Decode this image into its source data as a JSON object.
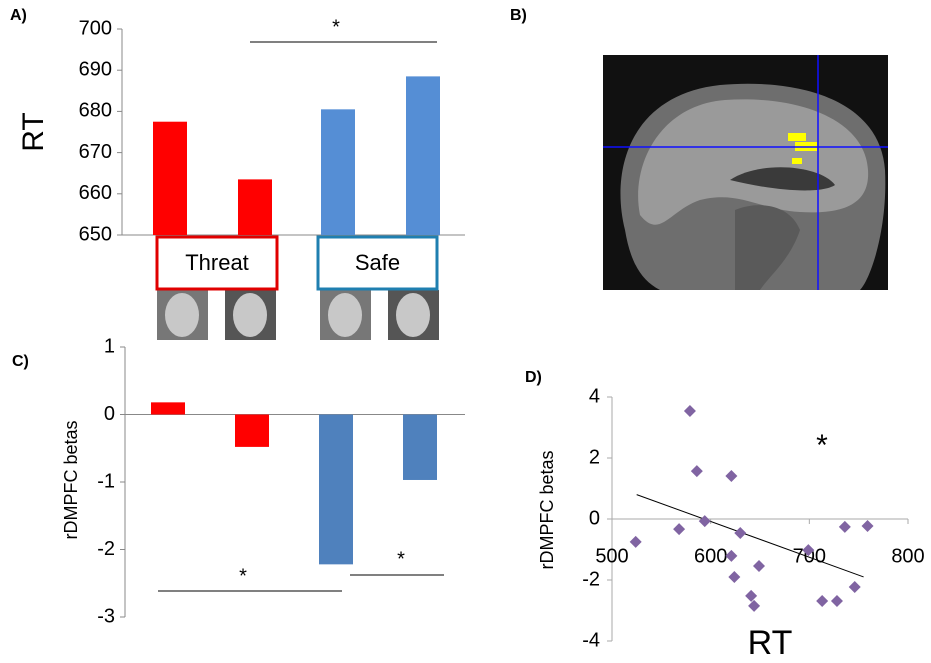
{
  "chart_data": [
    {
      "type": "bar",
      "panel_label": "A)",
      "y_label": "RT",
      "categories": [
        "Threat",
        "Threat",
        "Safe",
        "Safe"
      ],
      "groups": [
        "Threat",
        "Safe"
      ],
      "values": [
        677.5,
        663.5,
        680.5,
        688.5
      ],
      "colors": [
        "#ff0000",
        "#ff0000",
        "#558ed5",
        "#558ed5"
      ],
      "ylim": [
        650,
        700
      ],
      "yticks": [
        650,
        660,
        670,
        680,
        690,
        700
      ],
      "annotations": [
        "*"
      ]
    },
    {
      "type": "bar",
      "panel_label": "C)",
      "y_label": "rDMPFC betas",
      "values": [
        0.18,
        -0.48,
        -2.22,
        -0.97
      ],
      "colors": [
        "#ff0000",
        "#ff0000",
        "#4f81bd",
        "#4f81bd"
      ],
      "ylim": [
        -3,
        1
      ],
      "yticks": [
        -3,
        -2,
        -1,
        0,
        1
      ],
      "annotations": [
        "*",
        "*"
      ]
    },
    {
      "type": "scatter",
      "panel_label": "D)",
      "x_label": "RT",
      "y_label": "rDMPFC betas",
      "color": "#8064a2",
      "x": [
        524,
        579,
        586,
        568,
        594,
        621,
        630,
        621,
        624,
        649,
        641,
        644,
        699,
        713,
        728,
        736,
        759,
        746
      ],
      "y": [
        -0.75,
        3.54,
        1.57,
        -0.33,
        -0.07,
        1.41,
        -0.46,
        -1.21,
        -1.9,
        -1.54,
        -2.52,
        -2.85,
        -1.02,
        -2.69,
        -2.69,
        -0.26,
        -0.23,
        -2.23
      ],
      "trendline": {
        "x": [
          525,
          755
        ],
        "y": [
          0.8,
          -1.9
        ]
      },
      "xlim": [
        500,
        800
      ],
      "xticks": [
        500,
        600,
        700,
        800
      ],
      "ylim": [
        -4,
        4
      ],
      "yticks": [
        -4,
        -2,
        0,
        2,
        4
      ],
      "annotations": [
        "*"
      ]
    }
  ],
  "figure_b": {
    "panel_label": "B)"
  }
}
